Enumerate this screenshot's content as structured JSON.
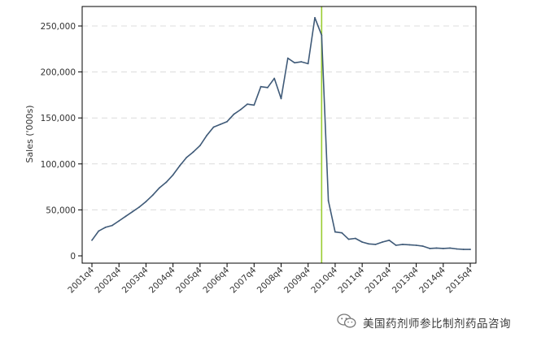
{
  "chart_data": {
    "type": "line",
    "title": "",
    "xlabel": "",
    "ylabel": "Sales ('000s)",
    "ylim": [
      0,
      270000
    ],
    "yticks": [
      0,
      50000,
      100000,
      150000,
      200000,
      250000
    ],
    "ytick_labels": [
      "0",
      "50,000",
      "100,000",
      "150,000",
      "200,000",
      "250,000"
    ],
    "xtick_labels": [
      "2001q4",
      "2002q4",
      "2003q4",
      "2004q4",
      "2005q4",
      "2006q4",
      "2007q4",
      "2008q4",
      "2009q4",
      "2010q4",
      "2011q4",
      "2012q4",
      "2013q4",
      "2014q4",
      "2015q4"
    ],
    "grid": "horizontal dashed",
    "reference_line": {
      "x": "2010q2",
      "color": "#9acd32"
    },
    "series": [
      {
        "color": "#3f5a78",
        "x": [
          "2001q4",
          "2002q1",
          "2002q2",
          "2002q3",
          "2002q4",
          "2003q1",
          "2003q2",
          "2003q3",
          "2003q4",
          "2004q1",
          "2004q2",
          "2004q3",
          "2004q4",
          "2005q1",
          "2005q2",
          "2005q3",
          "2005q4",
          "2006q1",
          "2006q2",
          "2006q3",
          "2006q4",
          "2007q1",
          "2007q2",
          "2007q3",
          "2007q4",
          "2008q1",
          "2008q2",
          "2008q3",
          "2008q4",
          "2009q1",
          "2009q2",
          "2009q3",
          "2009q4",
          "2010q1",
          "2010q2",
          "2010q3",
          "2010q4",
          "2011q1",
          "2011q2",
          "2011q3",
          "2011q4",
          "2012q1",
          "2012q2",
          "2012q3",
          "2012q4",
          "2013q1",
          "2013q2",
          "2013q3",
          "2013q4",
          "2014q1",
          "2014q2",
          "2014q3",
          "2014q4",
          "2015q1",
          "2015q2",
          "2015q3",
          "2015q4"
        ],
        "values": [
          17000,
          27000,
          31000,
          33000,
          38000,
          43000,
          48000,
          53000,
          59000,
          66000,
          74000,
          80000,
          88000,
          98000,
          107000,
          113000,
          120000,
          131000,
          140000,
          143000,
          146000,
          154000,
          159000,
          165000,
          164000,
          184000,
          183000,
          193000,
          171000,
          215000,
          210000,
          211000,
          209000,
          259000,
          240000,
          60000,
          26000,
          25000,
          18000,
          19000,
          15000,
          13000,
          12500,
          15000,
          17000,
          11500,
          12500,
          12000,
          11500,
          10500,
          8000,
          8500,
          8000,
          8500,
          7500,
          7000,
          7000
        ]
      }
    ]
  },
  "watermark": {
    "text": "美国药剂师参比制剂药品咨询",
    "icon": "wechat-icon"
  }
}
